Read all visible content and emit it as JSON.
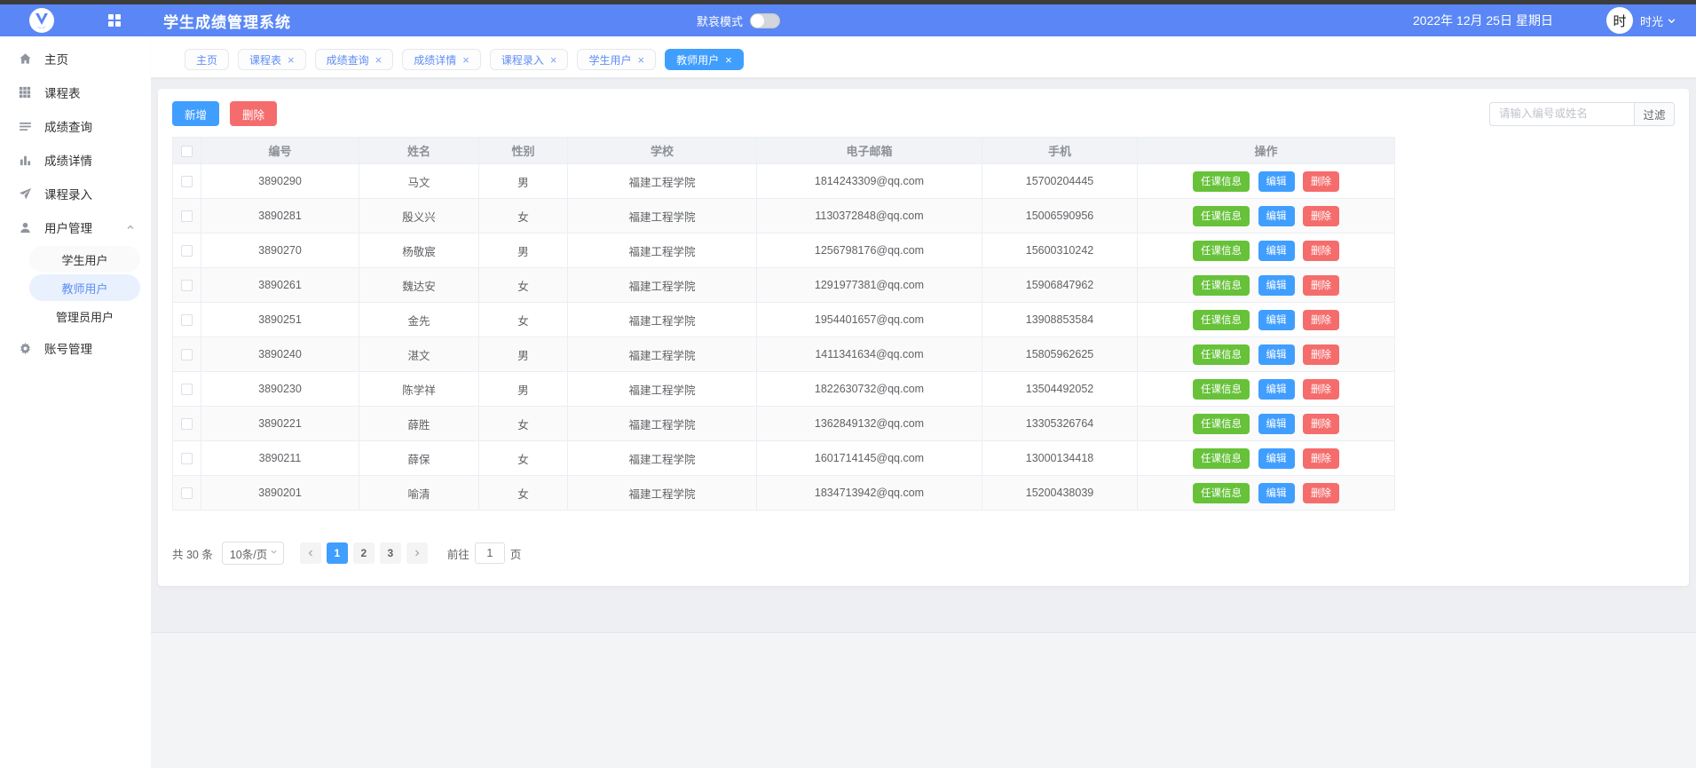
{
  "colors": {
    "header_blue": "#5a87f5",
    "accent_blue": "#409eff",
    "danger_red": "#f56c6c",
    "success_green": "#67c23a"
  },
  "header": {
    "title": "学生成绩管理系统",
    "mode_label": "默哀模式",
    "mode_state": "off",
    "date": "2022年 12月 25日  星期日",
    "avatar_text": "时",
    "username": "时光"
  },
  "sidebar": {
    "items": [
      {
        "id": "home",
        "label": "主页",
        "icon": "home"
      },
      {
        "id": "timetable",
        "label": "课程表",
        "icon": "grid"
      },
      {
        "id": "score-query",
        "label": "成绩查询",
        "icon": "list"
      },
      {
        "id": "score-detail",
        "label": "成绩详情",
        "icon": "bars"
      },
      {
        "id": "course-entry",
        "label": "课程录入",
        "icon": "send"
      },
      {
        "id": "user-management",
        "label": "用户管理",
        "icon": "user",
        "expandable": true
      },
      {
        "id": "student-users",
        "label": "学生用户",
        "type": "sub",
        "pill": "gray"
      },
      {
        "id": "teacher-users",
        "label": "教师用户",
        "type": "sub",
        "pill": "blue",
        "active": true
      },
      {
        "id": "admin-users",
        "label": "管理员用户",
        "type": "sub"
      },
      {
        "id": "account-management",
        "label": "账号管理",
        "icon": "gear"
      }
    ]
  },
  "tabs": [
    {
      "label": "主页",
      "closable": false
    },
    {
      "label": "课程表",
      "closable": true
    },
    {
      "label": "成绩查询",
      "closable": true
    },
    {
      "label": "成绩详情",
      "closable": true
    },
    {
      "label": "课程录入",
      "closable": true
    },
    {
      "label": "学生用户",
      "closable": true
    },
    {
      "label": "教师用户",
      "closable": true,
      "active": true
    }
  ],
  "toolbar": {
    "add_label": "新增",
    "delete_label": "删除",
    "filter_placeholder": "请输入编号或姓名",
    "filter_button": "过滤"
  },
  "table": {
    "headers": [
      "编号",
      "姓名",
      "性别",
      "学校",
      "电子邮箱",
      "手机",
      "操作"
    ],
    "row_actions": [
      "任课信息",
      "编辑",
      "删除"
    ],
    "rows": [
      {
        "id": "3890290",
        "name": "马文",
        "gender": "男",
        "school": "福建工程学院",
        "email": "1814243309@qq.com",
        "phone": "15700204445"
      },
      {
        "id": "3890281",
        "name": "殷义兴",
        "gender": "女",
        "school": "福建工程学院",
        "email": "1130372848@qq.com",
        "phone": "15006590956"
      },
      {
        "id": "3890270",
        "name": "杨敬宸",
        "gender": "男",
        "school": "福建工程学院",
        "email": "1256798176@qq.com",
        "phone": "15600310242"
      },
      {
        "id": "3890261",
        "name": "魏达安",
        "gender": "女",
        "school": "福建工程学院",
        "email": "1291977381@qq.com",
        "phone": "15906847962"
      },
      {
        "id": "3890251",
        "name": "金先",
        "gender": "女",
        "school": "福建工程学院",
        "email": "1954401657@qq.com",
        "phone": "13908853584"
      },
      {
        "id": "3890240",
        "name": "湛文",
        "gender": "男",
        "school": "福建工程学院",
        "email": "1411341634@qq.com",
        "phone": "15805962625"
      },
      {
        "id": "3890230",
        "name": "陈学祥",
        "gender": "男",
        "school": "福建工程学院",
        "email": "1822630732@qq.com",
        "phone": "13504492052"
      },
      {
        "id": "3890221",
        "name": "薛胜",
        "gender": "女",
        "school": "福建工程学院",
        "email": "1362849132@qq.com",
        "phone": "13305326764"
      },
      {
        "id": "3890211",
        "name": "薛保",
        "gender": "女",
        "school": "福建工程学院",
        "email": "1601714145@qq.com",
        "phone": "13000134418"
      },
      {
        "id": "3890201",
        "name": "喻清",
        "gender": "女",
        "school": "福建工程学院",
        "email": "1834713942@qq.com",
        "phone": "15200438039"
      }
    ]
  },
  "pagination": {
    "total": "共 30 条",
    "page_size": "10条/页",
    "pages": [
      "1",
      "2",
      "3"
    ],
    "active_page": "1",
    "goto_label": "前往",
    "goto_value": "1",
    "goto_suffix": "页"
  }
}
